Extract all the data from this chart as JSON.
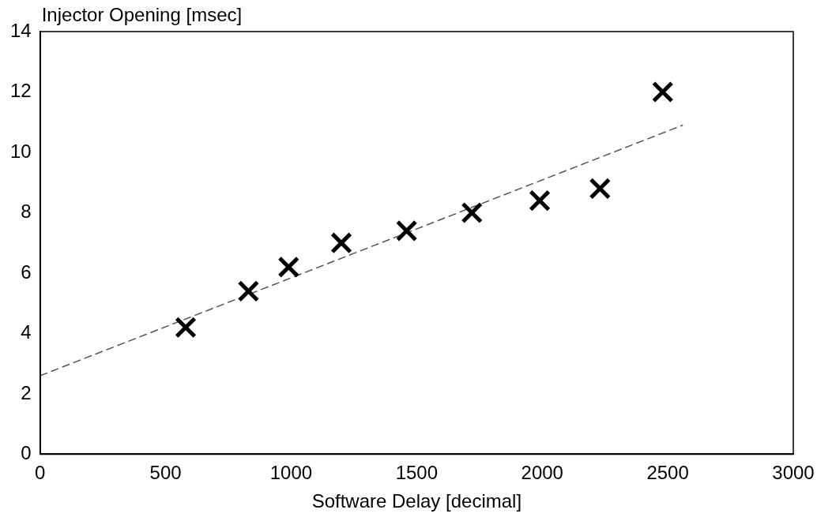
{
  "chart_data": {
    "type": "scatter",
    "xlabel": "Software Delay [decimal]",
    "ylabel": "Injector Opening [msec]",
    "xlim": [
      0,
      3000
    ],
    "xticks": [
      0,
      500,
      1000,
      1500,
      2000,
      2500,
      3000
    ],
    "ylim": [
      0,
      14
    ],
    "yticks": [
      0,
      2,
      4,
      6,
      8,
      10,
      12,
      14
    ],
    "grid": false,
    "legend": false,
    "marker": "cross",
    "series": [
      {
        "color": "#000000",
        "x": [
          580,
          830,
          990,
          1200,
          1460,
          1720,
          1990,
          2230,
          2480
        ],
        "values": [
          4.2,
          5.4,
          6.2,
          7.0,
          7.4,
          8.0,
          8.4,
          8.8,
          12.0
        ]
      },
      {
        "type": "line",
        "color": "#555555",
        "line_style": "dashed",
        "marker": "none",
        "x": [
          0,
          2560
        ],
        "values": [
          2.6,
          10.9
        ]
      }
    ]
  }
}
